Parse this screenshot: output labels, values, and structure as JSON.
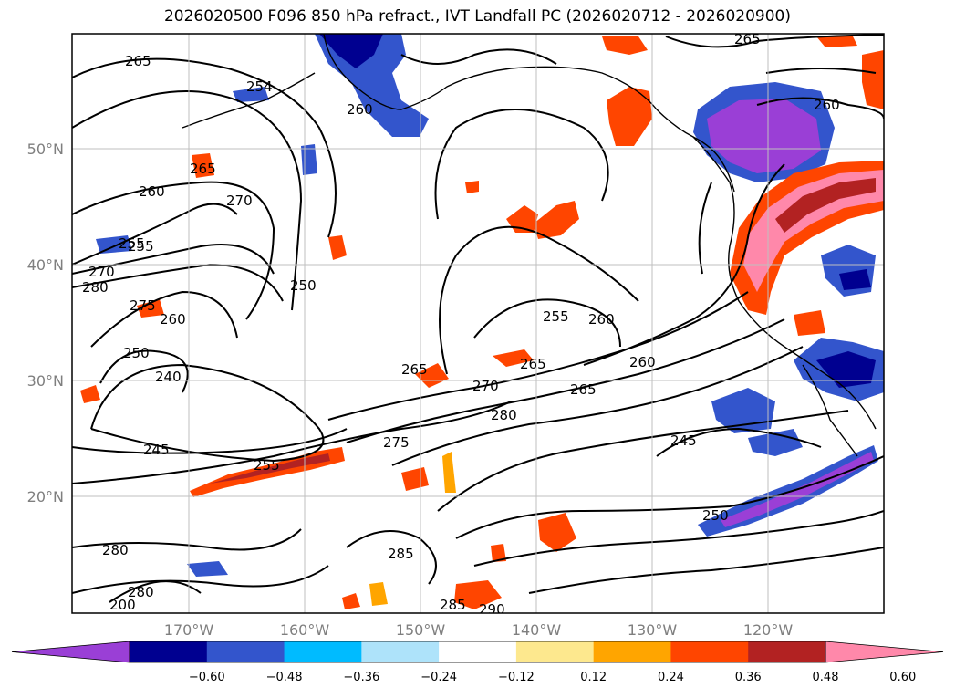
{
  "title": "2026020500 F096 850 hPa refract., IVT Landfall PC (2026020712 - 2026020900)",
  "lat_labels": [
    "50°N",
    "40°N",
    "30°N",
    "20°N"
  ],
  "lon_labels": [
    "170°W",
    "160°W",
    "150°W",
    "140°W",
    "130°W",
    "120°W"
  ],
  "colorbar": {
    "colors": [
      "#9a3fd6",
      "#000090",
      "#3355cc",
      "#00bbff",
      "#aee3fa",
      "#ffffff",
      "#fde88e",
      "#ffa500",
      "#ff4500",
      "#b22222",
      "#ff88aa"
    ],
    "tick_labels": [
      "−0.60",
      "−0.48",
      "−0.36",
      "−0.24",
      "−0.12",
      "0.12",
      "0.24",
      "0.36",
      "0.48",
      "0.60"
    ],
    "extend": "both"
  },
  "contour_labels": [
    "265",
    "265",
    "254",
    "260",
    "265",
    "270",
    "260",
    "255",
    "270",
    "280",
    "275",
    "260",
    "250",
    "240",
    "245",
    "255",
    "250",
    "265",
    "270",
    "280",
    "265",
    "275",
    "255",
    "260",
    "265",
    "260",
    "260",
    "245",
    "250",
    "280",
    "280",
    "200",
    "285",
    "285",
    "290",
    "255"
  ]
}
